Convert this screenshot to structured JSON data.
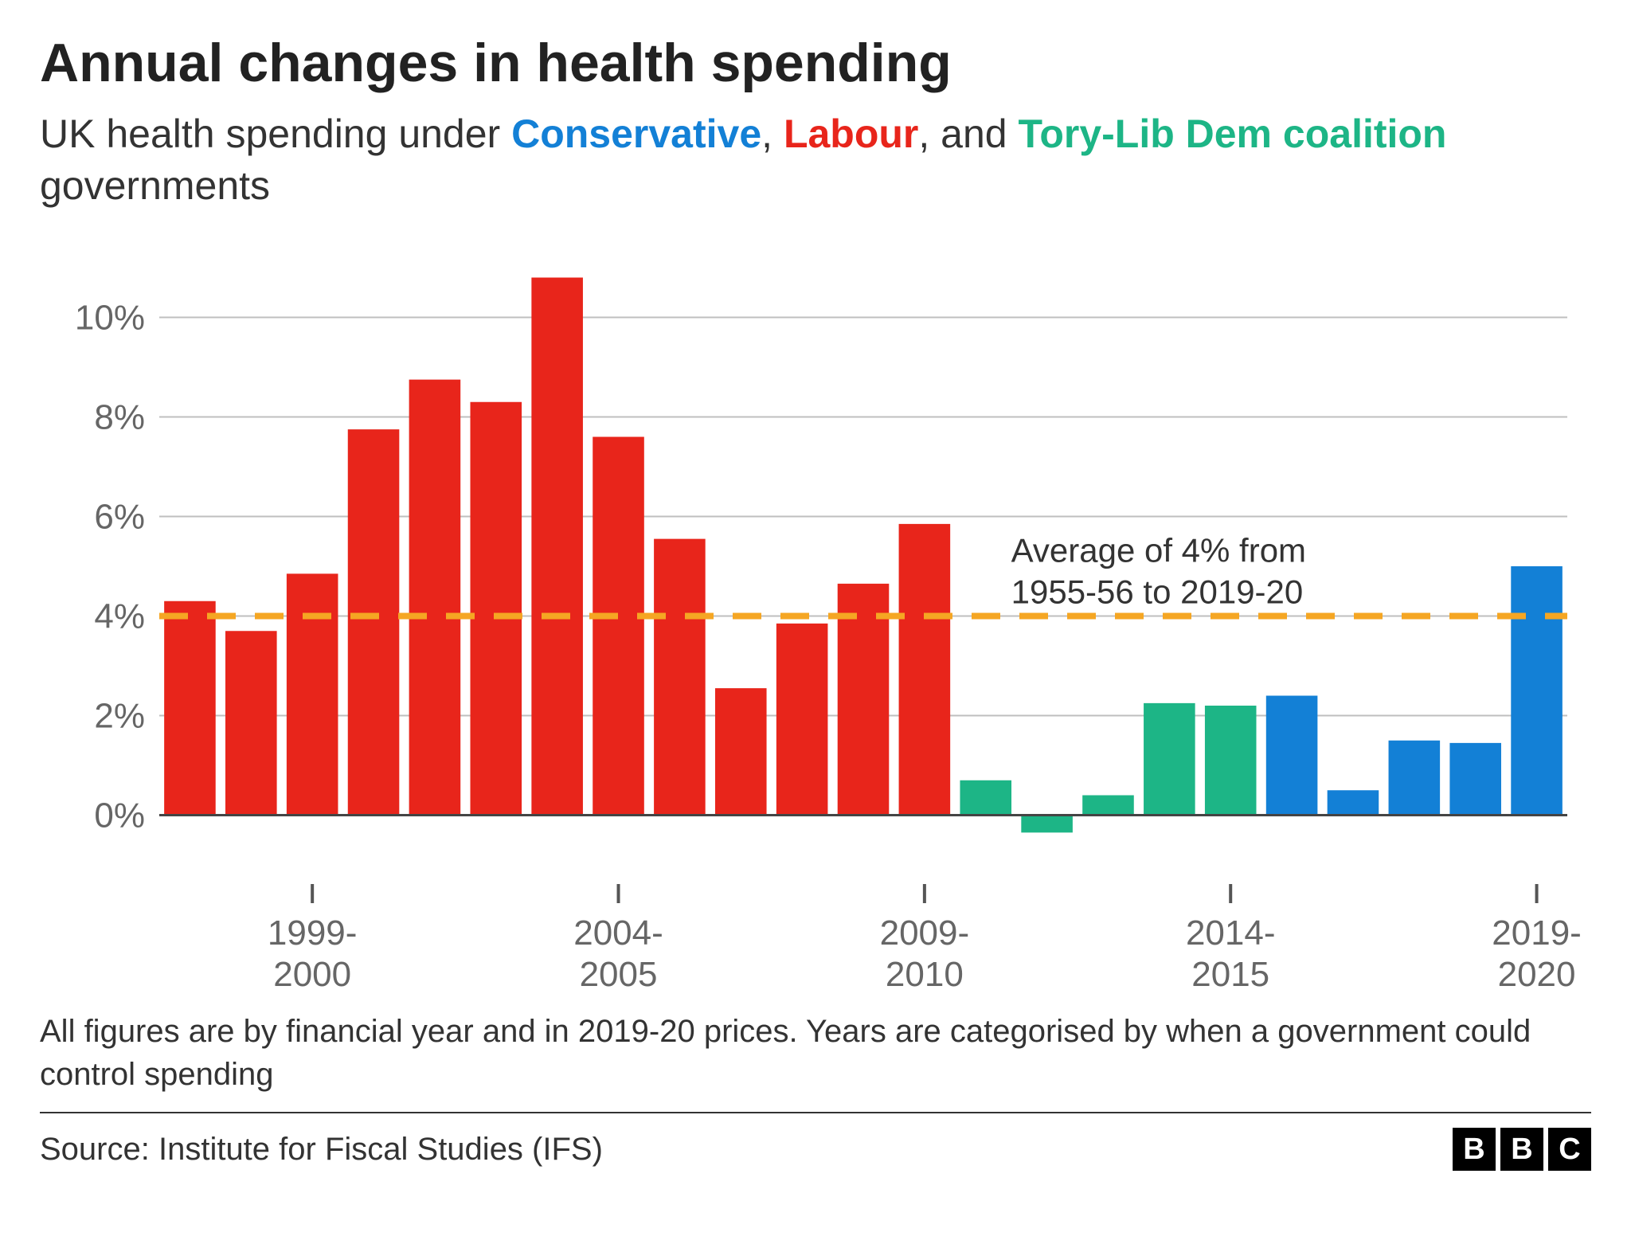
{
  "title": "Annual changes in health spending",
  "subtitle": {
    "segments": [
      {
        "text": "UK health spending under ",
        "color": "#333333",
        "weight": "400"
      },
      {
        "text": "Conservative",
        "color": "#1380d6",
        "weight": "700"
      },
      {
        "text": ", ",
        "color": "#333333",
        "weight": "400"
      },
      {
        "text": "Labour",
        "color": "#e8251b",
        "weight": "700"
      },
      {
        "text": ", and ",
        "color": "#333333",
        "weight": "400"
      },
      {
        "text": "Tory-Lib Dem coalition",
        "color": "#1db586",
        "weight": "700"
      },
      {
        "text": " governments",
        "color": "#333333",
        "weight": "400"
      }
    ]
  },
  "chart": {
    "type": "bar",
    "background_color": "#ffffff",
    "grid_color": "#bfbfbf",
    "baseline_color": "#444444",
    "y": {
      "min": -1,
      "max": 11,
      "ticks": [
        0,
        2,
        4,
        6,
        8,
        10
      ],
      "tick_labels": [
        "0%",
        "2%",
        "4%",
        "6%",
        "8%",
        "10%"
      ],
      "label_color": "#666666",
      "label_fontsize": 44
    },
    "x": {
      "ticks_at_category_index": [
        2,
        7,
        12,
        17,
        22
      ],
      "tick_labels": [
        [
          "1999-",
          "2000"
        ],
        [
          "2004-",
          "2005"
        ],
        [
          "2009-",
          "2010"
        ],
        [
          "2014-",
          "2015"
        ],
        [
          "2019-",
          "2020"
        ]
      ],
      "label_color": "#666666",
      "label_fontsize": 44
    },
    "bar_width_ratio": 0.84,
    "categories_count": 23,
    "colors": {
      "labour": "#e8251b",
      "coalition": "#1db586",
      "conservative": "#1380d6"
    },
    "bars": [
      {
        "value": 4.3,
        "color_key": "labour"
      },
      {
        "value": 3.7,
        "color_key": "labour"
      },
      {
        "value": 4.85,
        "color_key": "labour"
      },
      {
        "value": 7.75,
        "color_key": "labour"
      },
      {
        "value": 8.75,
        "color_key": "labour"
      },
      {
        "value": 8.3,
        "color_key": "labour"
      },
      {
        "value": 10.8,
        "color_key": "labour"
      },
      {
        "value": 7.6,
        "color_key": "labour"
      },
      {
        "value": 5.55,
        "color_key": "labour"
      },
      {
        "value": 2.55,
        "color_key": "labour"
      },
      {
        "value": 3.85,
        "color_key": "labour"
      },
      {
        "value": 4.65,
        "color_key": "labour"
      },
      {
        "value": 5.85,
        "color_key": "labour"
      },
      {
        "value": 0.7,
        "color_key": "coalition"
      },
      {
        "value": -0.35,
        "color_key": "coalition"
      },
      {
        "value": 0.4,
        "color_key": "coalition"
      },
      {
        "value": 2.25,
        "color_key": "coalition"
      },
      {
        "value": 2.2,
        "color_key": "coalition"
      },
      {
        "value": 2.4,
        "color_key": "conservative"
      },
      {
        "value": 0.5,
        "color_key": "conservative"
      },
      {
        "value": 1.5,
        "color_key": "conservative"
      },
      {
        "value": 1.45,
        "color_key": "conservative"
      },
      {
        "value": 5.0,
        "color_key": "conservative"
      }
    ],
    "average_line": {
      "value": 4,
      "color": "#f5a623",
      "label_lines": [
        "Average of 4% from",
        "1955-56 to 2019-20"
      ],
      "label_fontsize": 42,
      "label_color": "#333333"
    }
  },
  "footnote": "All figures are by financial year and in 2019-20 prices. Years are categorised by when a government could control spending",
  "source": "Source: Institute for Fiscal Studies (IFS)",
  "logo": {
    "letters": [
      "B",
      "B",
      "C"
    ],
    "bg": "#000000",
    "fg": "#ffffff"
  }
}
